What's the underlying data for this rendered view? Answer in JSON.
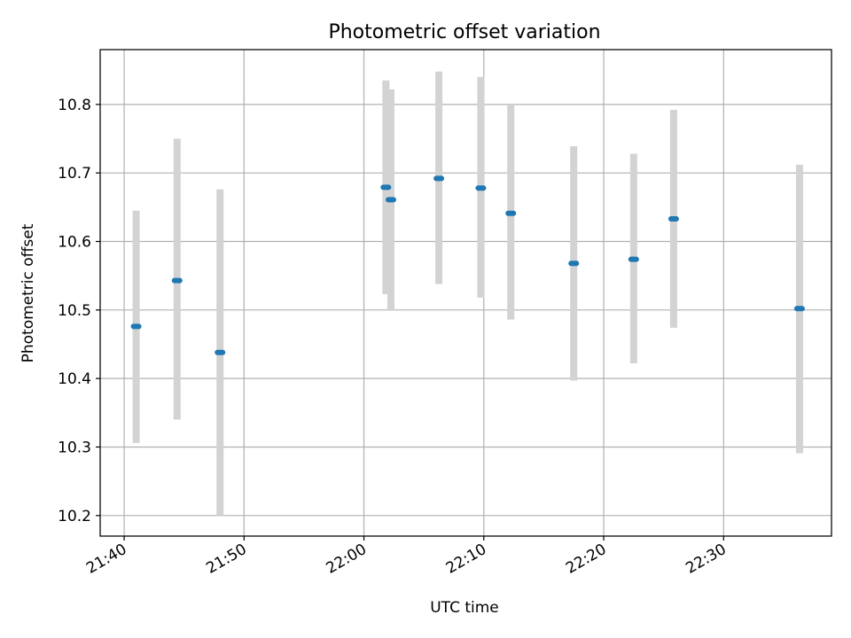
{
  "chart_data": {
    "type": "scatter",
    "title": "Photometric offset variation",
    "xlabel": "UTC time",
    "ylabel": "Photometric offset",
    "x_axis": {
      "kind": "time",
      "range": [
        "21:38",
        "22:39"
      ],
      "ticks": [
        "21:40",
        "21:50",
        "22:00",
        "22:10",
        "22:20",
        "22:30"
      ]
    },
    "y_axis": {
      "range": [
        10.17,
        10.88
      ],
      "ticks": [
        10.2,
        10.3,
        10.4,
        10.5,
        10.6,
        10.7,
        10.8
      ],
      "tick_labels": [
        "10.2",
        "10.3",
        "10.4",
        "10.5",
        "10.6",
        "10.7",
        "10.8"
      ]
    },
    "grid": true,
    "colors": {
      "marker": "#1f77b4",
      "errorbar": "#d3d3d3",
      "grid": "#b0b0b0"
    },
    "series": [
      {
        "points": [
          {
            "x": "21:41:00",
            "y": 10.476,
            "err_low": 10.306,
            "err_high": 10.645
          },
          {
            "x": "21:44:25",
            "y": 10.543,
            "err_low": 10.34,
            "err_high": 10.75
          },
          {
            "x": "21:48:00",
            "y": 10.438,
            "err_low": 10.2,
            "err_high": 10.676
          },
          {
            "x": "22:01:50",
            "y": 10.679,
            "err_low": 10.523,
            "err_high": 10.835
          },
          {
            "x": "22:02:15",
            "y": 10.661,
            "err_low": 10.5,
            "err_high": 10.822
          },
          {
            "x": "22:06:15",
            "y": 10.692,
            "err_low": 10.538,
            "err_high": 10.848
          },
          {
            "x": "22:09:45",
            "y": 10.678,
            "err_low": 10.518,
            "err_high": 10.84
          },
          {
            "x": "22:12:15",
            "y": 10.641,
            "err_low": 10.486,
            "err_high": 10.8
          },
          {
            "x": "22:17:30",
            "y": 10.568,
            "err_low": 10.397,
            "err_high": 10.739
          },
          {
            "x": "22:22:30",
            "y": 10.574,
            "err_low": 10.422,
            "err_high": 10.728
          },
          {
            "x": "22:25:50",
            "y": 10.633,
            "err_low": 10.474,
            "err_high": 10.792
          },
          {
            "x": "22:36:20",
            "y": 10.502,
            "err_low": 10.291,
            "err_high": 10.712
          }
        ]
      }
    ]
  }
}
